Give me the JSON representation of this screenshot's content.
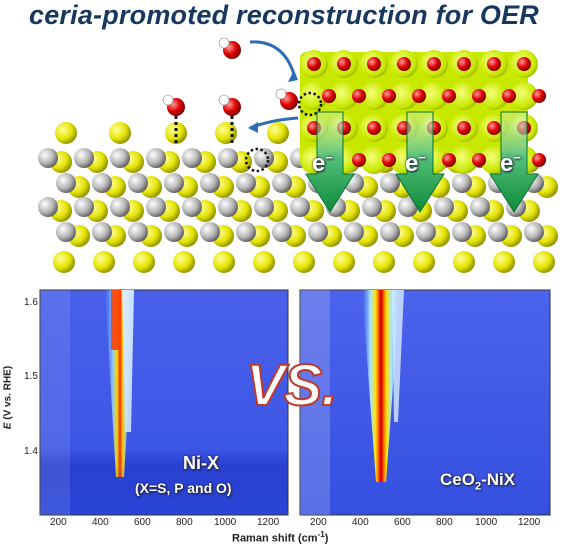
{
  "title": "ceria-promoted reconstruction for OER",
  "electron_label": "e",
  "electron_sup": "−",
  "panel_left_label_line1": "Ni-X",
  "panel_left_label_line2": "(X=S, P and O)",
  "panel_right_label_prefix": "CeO",
  "panel_right_label_sub": "2",
  "panel_right_label_suffix": "-NiX",
  "vs_text": "VS.",
  "y_axis_label_italic": "E",
  "y_axis_label_rest": " (V vs. RHE)",
  "y_ticks": [
    "1.6",
    "1.5",
    "1.4"
  ],
  "x_ticks_left": [
    "200",
    "400",
    "600",
    "800",
    "1000",
    "1200"
  ],
  "x_ticks_right": [
    "200",
    "400",
    "600",
    "800",
    "1000",
    "1200"
  ],
  "x_axis_label": "Raman shift (cm",
  "x_axis_label_sup": "-1",
  "x_axis_label_end": ")",
  "colors": {
    "title": "#17375e",
    "map_background": "#3a52e0",
    "peak_hot": "#ff2a00",
    "peak_mid": "#ffe100",
    "sulfur": "#e6e600",
    "nickel": "#b0b0b0",
    "oxygen": "#e00000",
    "arrow_green": "#1a9a4a",
    "arrow_blue": "#2f6db3"
  },
  "icons": [
    "water-molecule",
    "electron-transfer-arrow",
    "adsorption-arrow",
    "vacancy-circle"
  ]
}
